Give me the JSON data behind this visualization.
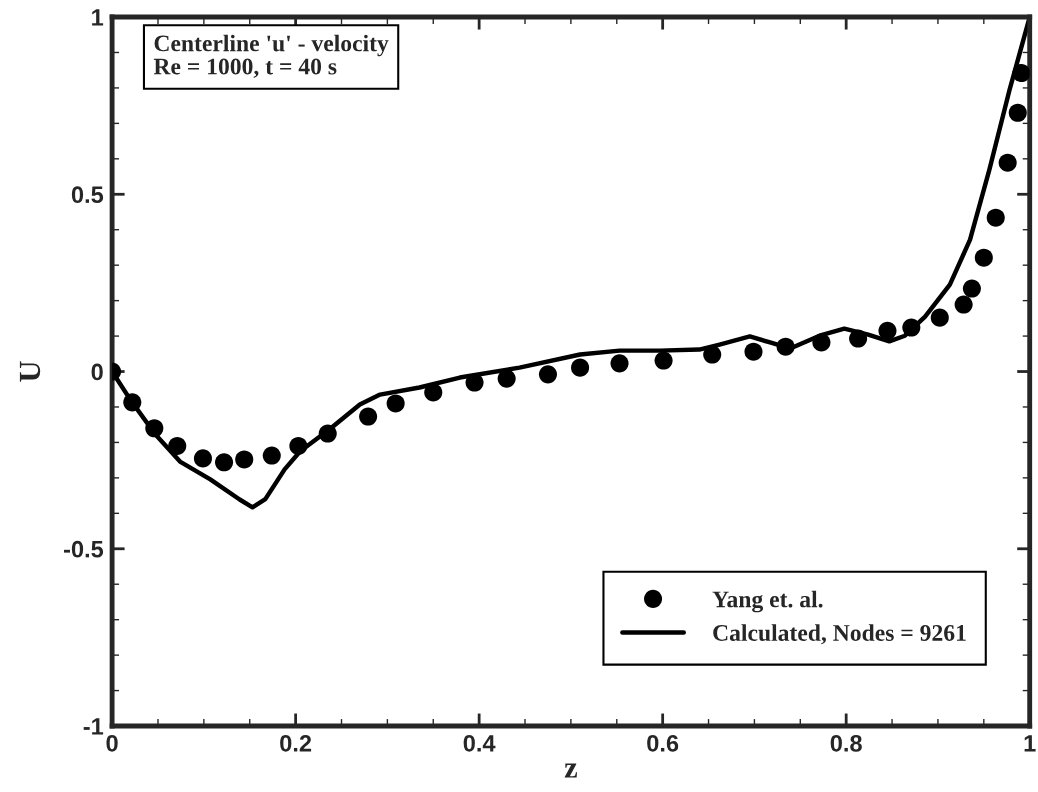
{
  "chart_data": {
    "type": "line",
    "xlabel": "z",
    "ylabel": "U",
    "annotations": [
      "Centerline 'u' - velocity\nRe = 1000, t = 40 s"
    ],
    "xlim": [
      0,
      1
    ],
    "ylim": [
      -1,
      1
    ],
    "xticks": [
      0,
      0.2,
      0.4,
      0.6,
      0.8,
      1
    ],
    "yticks": [
      -1,
      -0.5,
      0,
      0.5,
      1
    ],
    "grid": false,
    "legend": "bottom right",
    "series": [
      {
        "name": "Yang et. al.",
        "type": "scatter",
        "marker": "circle",
        "color": "#000000",
        "x": [
          0,
          0.022,
          0.046,
          0.071,
          0.099,
          0.122,
          0.144,
          0.174,
          0.203,
          0.235,
          0.279,
          0.309,
          0.35,
          0.395,
          0.43,
          0.475,
          0.51,
          0.553,
          0.601,
          0.654,
          0.699,
          0.734,
          0.773,
          0.813,
          0.845,
          0.871,
          0.902,
          0.928,
          0.937,
          0.95,
          0.963,
          0.976,
          0.987,
          0.991
        ],
        "values": [
          0,
          -0.087,
          -0.16,
          -0.21,
          -0.245,
          -0.256,
          -0.248,
          -0.237,
          -0.21,
          -0.175,
          -0.127,
          -0.09,
          -0.059,
          -0.031,
          -0.02,
          -0.008,
          0.011,
          0.023,
          0.031,
          0.048,
          0.056,
          0.07,
          0.082,
          0.093,
          0.115,
          0.124,
          0.152,
          0.189,
          0.234,
          0.321,
          0.434,
          0.589,
          0.73,
          0.842
        ]
      },
      {
        "name": "Calculated, Nodes = 9261",
        "line_style": "solid",
        "color": "#000000",
        "x": [
          0,
          0.02,
          0.047,
          0.074,
          0.107,
          0.139,
          0.153,
          0.167,
          0.188,
          0.205,
          0.237,
          0.27,
          0.292,
          0.335,
          0.379,
          0.444,
          0.51,
          0.553,
          0.597,
          0.64,
          0.662,
          0.695,
          0.717,
          0.739,
          0.771,
          0.798,
          0.824,
          0.847,
          0.864,
          0.886,
          0.913,
          0.935,
          0.956,
          0.978,
          1.0
        ],
        "values": [
          0,
          -0.08,
          -0.177,
          -0.254,
          -0.304,
          -0.361,
          -0.383,
          -0.36,
          -0.276,
          -0.225,
          -0.163,
          -0.093,
          -0.065,
          -0.045,
          -0.017,
          0.011,
          0.048,
          0.059,
          0.059,
          0.062,
          0.076,
          0.099,
          0.082,
          0.065,
          0.101,
          0.121,
          0.104,
          0.085,
          0.101,
          0.155,
          0.245,
          0.372,
          0.569,
          0.794,
          1.0
        ]
      }
    ]
  }
}
